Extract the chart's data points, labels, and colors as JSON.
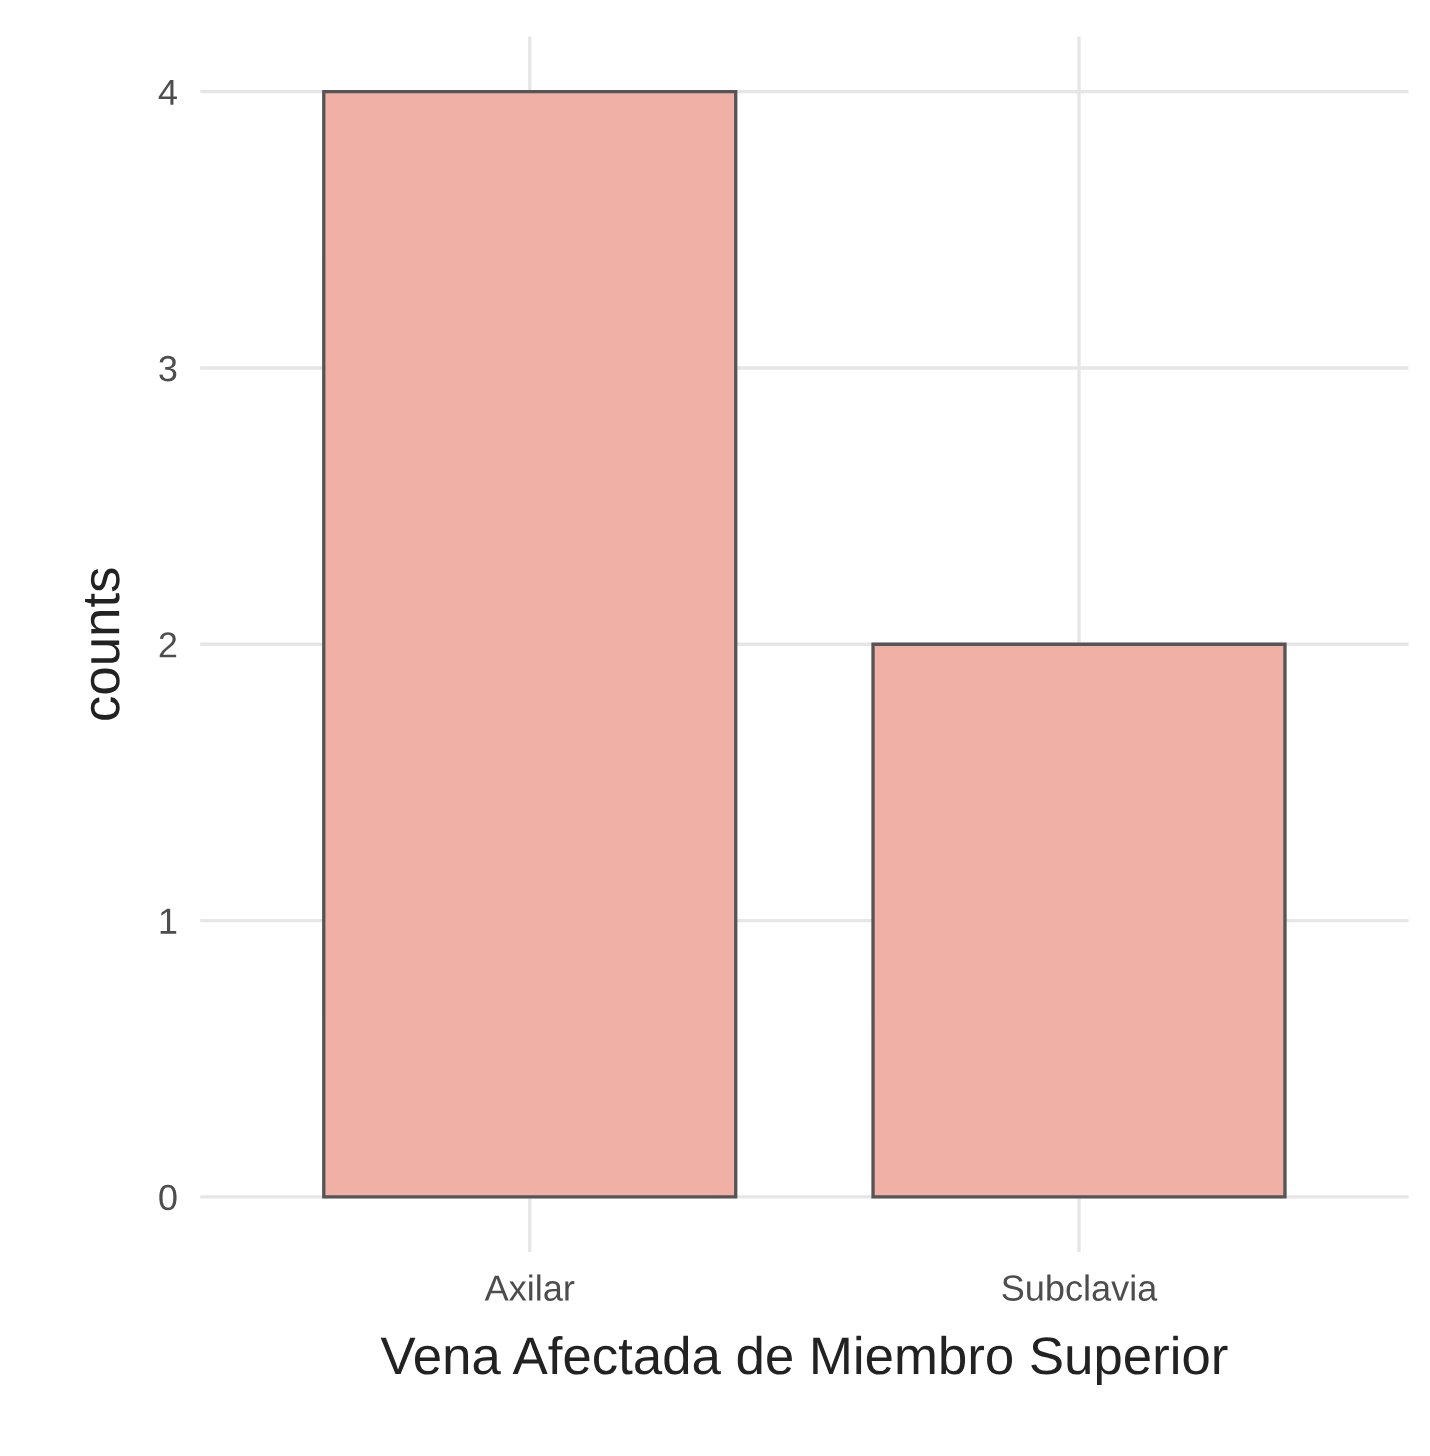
{
  "chart_data": {
    "type": "bar",
    "xlabel": "Vena Afectada de Miembro Superior",
    "ylabel": "counts",
    "categories": [
      "Axilar",
      "Subclavia"
    ],
    "values": [
      4,
      2
    ],
    "color": "#f0b0a6",
    "ylim": [
      -0.2,
      4.2
    ],
    "yticks": [
      0,
      1,
      2,
      3,
      4
    ],
    "grid": true
  }
}
